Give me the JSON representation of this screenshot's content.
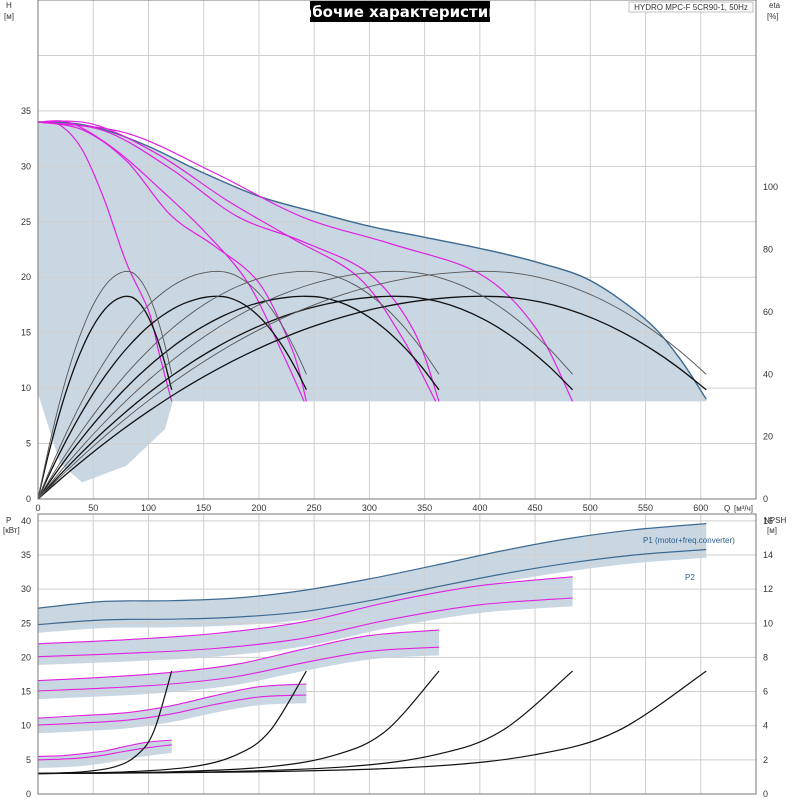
{
  "title": "Рабочие характеристики",
  "model": "HYDRO MPC-F 5CR90-1, 50Hz",
  "colors": {
    "band": "#c9d7e3",
    "envelope": "#3d6a91",
    "magenta": "#e020e0",
    "eff": "#555555",
    "black": "#111111",
    "grid": "#cfcfcf"
  },
  "chart_data": [
    {
      "name": "head",
      "type": "line",
      "axes": {
        "x_label": "Q",
        "x_unit": "[м³/ч]",
        "x_range": [
          0,
          650
        ],
        "x_ticks": [
          0,
          50,
          100,
          150,
          200,
          250,
          300,
          350,
          400,
          450,
          500,
          550,
          600
        ],
        "y_label": "H",
        "y_unit": "[м]",
        "y_range": [
          0,
          45
        ],
        "y_ticks": [
          0,
          5,
          10,
          15,
          20,
          25,
          30,
          35
        ],
        "y2_label": "eta",
        "y2_unit": "[%]",
        "y2_range": [
          0,
          160
        ],
        "y2_ticks": [
          0,
          20,
          40,
          60,
          80,
          100
        ]
      },
      "envelope": [
        [
          0,
          34
        ],
        [
          30,
          33.9
        ],
        [
          60,
          33.3
        ],
        [
          100,
          31.8
        ],
        [
          150,
          29.4
        ],
        [
          200,
          27.3
        ],
        [
          250,
          25.9
        ],
        [
          300,
          24.6
        ],
        [
          350,
          23.6
        ],
        [
          400,
          22.6
        ],
        [
          450,
          21.4
        ],
        [
          500,
          19.7
        ],
        [
          550,
          16.2
        ],
        [
          580,
          12.8
        ],
        [
          605,
          9.0
        ]
      ],
      "region_bottom": [
        [
          0,
          9.5
        ],
        [
          20,
          3.2
        ],
        [
          40,
          1.5
        ],
        [
          80,
          3.0
        ],
        [
          115,
          6.3
        ],
        [
          122,
          8.8
        ],
        [
          605,
          8.8
        ]
      ],
      "head_curves": [
        {
          "pumps": 1,
          "points": [
            [
              0,
              34
            ],
            [
              20,
              33.7
            ],
            [
              40,
              31.5
            ],
            [
              60,
              27.0
            ],
            [
              80,
              21.3
            ],
            [
              100,
              17.0
            ],
            [
              110,
              13.0
            ],
            [
              121,
              8.8
            ]
          ]
        },
        {
          "pumps": 1,
          "points": [
            [
              0,
              34
            ],
            [
              40,
              33.3
            ],
            [
              80,
              30.5
            ],
            [
              120,
              25.6
            ],
            [
              160,
              22.8
            ],
            [
              200,
              19.5
            ],
            [
              230,
              13.5
            ],
            [
              243,
              8.8
            ]
          ]
        },
        {
          "pumps": 1,
          "points": [
            [
              0,
              34
            ],
            [
              60,
              33.2
            ],
            [
              120,
              29.8
            ],
            [
              180,
              25.5
            ],
            [
              240,
              23.2
            ],
            [
              300,
              20.3
            ],
            [
              340,
              15.2
            ],
            [
              363,
              8.8
            ]
          ]
        },
        {
          "pumps": 1,
          "points": [
            [
              0,
              34
            ],
            [
              80,
              33.0
            ],
            [
              160,
              29.4
            ],
            [
              240,
              25.4
            ],
            [
              320,
              23.0
            ],
            [
              400,
              20.3
            ],
            [
              450,
              15.5
            ],
            [
              484,
              8.8
            ]
          ]
        },
        {
          "pumps": 1,
          "points": [
            [
              0,
              34
            ],
            [
              30,
              33.9
            ],
            [
              70,
              31.5
            ],
            [
              110,
              28.0
            ],
            [
              150,
              24.2
            ],
            [
              190,
              19.5
            ],
            [
              222,
              13.0
            ],
            [
              241,
              8.8
            ]
          ]
        },
        {
          "pumps": 1,
          "points": [
            [
              0,
              34
            ],
            [
              50,
              33.8
            ],
            [
              110,
              31.0
            ],
            [
              170,
              27.0
            ],
            [
              230,
              23.5
            ],
            [
              290,
              20.0
            ],
            [
              330,
              14.5
            ],
            [
              360,
              8.8
            ]
          ]
        }
      ],
      "eta_curves": [
        {
          "q_max": 121,
          "eta_peak": 65,
          "eta_end": 35
        },
        {
          "q_max": 243,
          "eta_peak": 65,
          "eta_end": 35
        },
        {
          "q_max": 363,
          "eta_peak": 65,
          "eta_end": 35
        },
        {
          "q_max": 484,
          "eta_peak": 65,
          "eta_end": 35
        },
        {
          "q_max": 605,
          "eta_peak": 65,
          "eta_end": 35
        },
        {
          "q_max": 121,
          "eta_peak": 73,
          "eta_end": 40
        },
        {
          "q_max": 243,
          "eta_peak": 73,
          "eta_end": 40
        },
        {
          "q_max": 363,
          "eta_peak": 73,
          "eta_end": 40
        },
        {
          "q_max": 484,
          "eta_peak": 73,
          "eta_end": 40
        },
        {
          "q_max": 605,
          "eta_peak": 73,
          "eta_end": 40
        }
      ]
    },
    {
      "name": "power",
      "type": "line",
      "axes": {
        "x_range": [
          0,
          650
        ],
        "x_ticks": [
          0,
          50,
          100,
          150,
          200,
          250,
          300,
          350,
          400,
          450,
          500,
          550,
          600
        ],
        "y_label": "P",
        "y_unit": "[кВт]",
        "y_range": [
          0,
          41
        ],
        "y_ticks": [
          0,
          5,
          10,
          15,
          20,
          25,
          30,
          35,
          40
        ],
        "y2_label": "NPSH",
        "y2_unit": "[м]",
        "y2_range": [
          0,
          16.4
        ],
        "y2_ticks": [
          0,
          2,
          4,
          6,
          8,
          10,
          12,
          14,
          16
        ]
      },
      "series": [
        {
          "name": "P1 (motor+freq.converter)",
          "points": [
            [
              0,
              27.2
            ],
            [
              60,
              28.2
            ],
            [
              120,
              28.3
            ],
            [
              180,
              28.7
            ],
            [
              240,
              29.8
            ],
            [
              300,
              31.5
            ],
            [
              360,
              33.5
            ],
            [
              420,
              35.6
            ],
            [
              480,
              37.4
            ],
            [
              540,
              38.7
            ],
            [
              605,
              39.6
            ]
          ]
        },
        {
          "name": "P2",
          "points": [
            [
              0,
              24.8
            ],
            [
              60,
              25.5
            ],
            [
              120,
              25.6
            ],
            [
              180,
              25.9
            ],
            [
              240,
              26.7
            ],
            [
              300,
              28.3
            ],
            [
              360,
              30.3
            ],
            [
              420,
              32.2
            ],
            [
              480,
              33.8
            ],
            [
              540,
              35.0
            ],
            [
              605,
              35.8
            ]
          ]
        }
      ],
      "magenta_curves": [
        [
          [
            0,
            22.0
          ],
          [
            80,
            22.6
          ],
          [
            160,
            23.5
          ],
          [
            240,
            25.2
          ],
          [
            320,
            28.2
          ],
          [
            400,
            30.5
          ],
          [
            484,
            31.8
          ]
        ],
        [
          [
            0,
            20.1
          ],
          [
            80,
            20.6
          ],
          [
            160,
            21.3
          ],
          [
            240,
            22.8
          ],
          [
            320,
            25.6
          ],
          [
            400,
            27.7
          ],
          [
            484,
            28.7
          ]
        ],
        [
          [
            0,
            16.6
          ],
          [
            60,
            17.1
          ],
          [
            120,
            17.8
          ],
          [
            180,
            19.0
          ],
          [
            240,
            21.2
          ],
          [
            300,
            23.2
          ],
          [
            363,
            24.0
          ]
        ],
        [
          [
            0,
            15.1
          ],
          [
            60,
            15.5
          ],
          [
            120,
            16.1
          ],
          [
            180,
            17.2
          ],
          [
            240,
            19.2
          ],
          [
            300,
            20.9
          ],
          [
            363,
            21.5
          ]
        ],
        [
          [
            0,
            11.1
          ],
          [
            40,
            11.5
          ],
          [
            80,
            11.9
          ],
          [
            120,
            12.9
          ],
          [
            160,
            14.4
          ],
          [
            200,
            15.7
          ],
          [
            243,
            16.1
          ]
        ],
        [
          [
            0,
            10.1
          ],
          [
            40,
            10.4
          ],
          [
            80,
            10.8
          ],
          [
            120,
            11.7
          ],
          [
            160,
            13.1
          ],
          [
            200,
            14.2
          ],
          [
            243,
            14.5
          ]
        ],
        [
          [
            0,
            5.5
          ],
          [
            20,
            5.6
          ],
          [
            40,
            5.9
          ],
          [
            60,
            6.3
          ],
          [
            80,
            7.0
          ],
          [
            100,
            7.6
          ],
          [
            121,
            7.9
          ]
        ],
        [
          [
            0,
            5.0
          ],
          [
            20,
            5.1
          ],
          [
            40,
            5.3
          ],
          [
            60,
            5.7
          ],
          [
            80,
            6.3
          ],
          [
            100,
            6.8
          ],
          [
            121,
            7.2
          ]
        ]
      ],
      "npsh_curves": [
        [
          [
            0,
            1.2
          ],
          [
            40,
            1.3
          ],
          [
            70,
            1.6
          ],
          [
            90,
            2.3
          ],
          [
            105,
            3.7
          ],
          [
            121,
            7.2
          ]
        ],
        [
          [
            0,
            1.2
          ],
          [
            80,
            1.3
          ],
          [
            140,
            1.6
          ],
          [
            180,
            2.3
          ],
          [
            210,
            3.7
          ],
          [
            243,
            7.2
          ]
        ],
        [
          [
            0,
            1.2
          ],
          [
            120,
            1.3
          ],
          [
            210,
            1.6
          ],
          [
            270,
            2.3
          ],
          [
            315,
            3.7
          ],
          [
            363,
            7.2
          ]
        ],
        [
          [
            0,
            1.2
          ],
          [
            160,
            1.3
          ],
          [
            280,
            1.6
          ],
          [
            360,
            2.3
          ],
          [
            420,
            3.7
          ],
          [
            484,
            7.2
          ]
        ],
        [
          [
            0,
            1.2
          ],
          [
            200,
            1.3
          ],
          [
            350,
            1.6
          ],
          [
            450,
            2.3
          ],
          [
            525,
            3.7
          ],
          [
            605,
            7.2
          ]
        ]
      ]
    }
  ]
}
